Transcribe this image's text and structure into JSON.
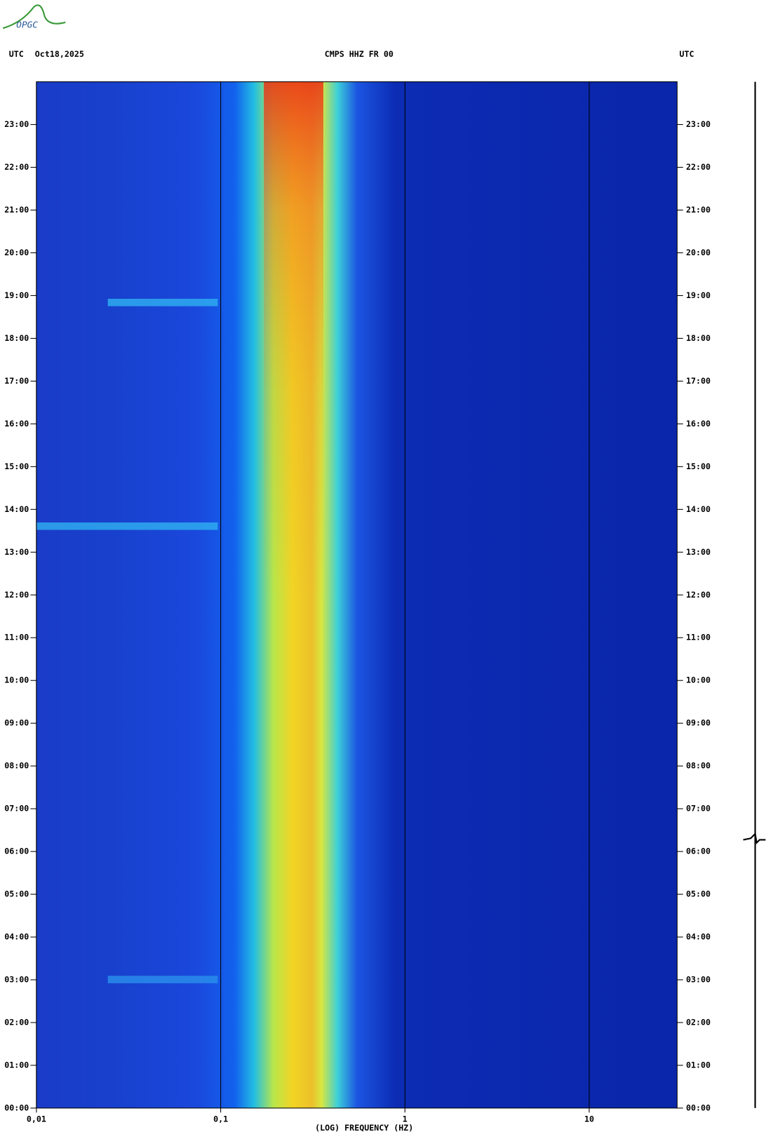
{
  "chart_data": {
    "type": "spectrogram",
    "logo": "OPGC",
    "left_label": "UTC",
    "date": "Oct18,2025",
    "title": "CMPS HHZ FR 00",
    "right_label": "UTC",
    "x_label": "(LOG) FREQUENCY (HZ)",
    "x_scale": "log",
    "xlim": [
      0.01,
      30
    ],
    "xticks": [
      {
        "value": 0.01,
        "label": "0,01"
      },
      {
        "value": 0.1,
        "label": "0,1"
      },
      1,
      10
    ],
    "ylim": [
      0,
      24
    ],
    "yticks": [
      {
        "value": 0,
        "label": "00:00"
      },
      {
        "value": 1,
        "label": "01:00"
      },
      {
        "value": 2,
        "label": "02:00"
      },
      {
        "value": 3,
        "label": "03:00"
      },
      {
        "value": 4,
        "label": "04:00"
      },
      {
        "value": 5,
        "label": "05:00"
      },
      {
        "value": 6,
        "label": "06:00"
      },
      {
        "value": 7,
        "label": "07:00"
      },
      {
        "value": 8,
        "label": "08:00"
      },
      {
        "value": 9,
        "label": "09:00"
      },
      {
        "value": 10,
        "label": "10:00"
      },
      {
        "value": 11,
        "label": "11:00"
      },
      {
        "value": 12,
        "label": "12:00"
      },
      {
        "value": 13,
        "label": "13:00"
      },
      {
        "value": 14,
        "label": "14:00"
      },
      {
        "value": 15,
        "label": "15:00"
      },
      {
        "value": 16,
        "label": "16:00"
      },
      {
        "value": 17,
        "label": "17:00"
      },
      {
        "value": 18,
        "label": "18:00"
      },
      {
        "value": 19,
        "label": "19:00"
      },
      {
        "value": 20,
        "label": "20:00"
      },
      {
        "value": 21,
        "label": "21:00"
      },
      {
        "value": 22,
        "label": "22:00"
      },
      {
        "value": 23,
        "label": "23:00"
      }
    ]
  }
}
